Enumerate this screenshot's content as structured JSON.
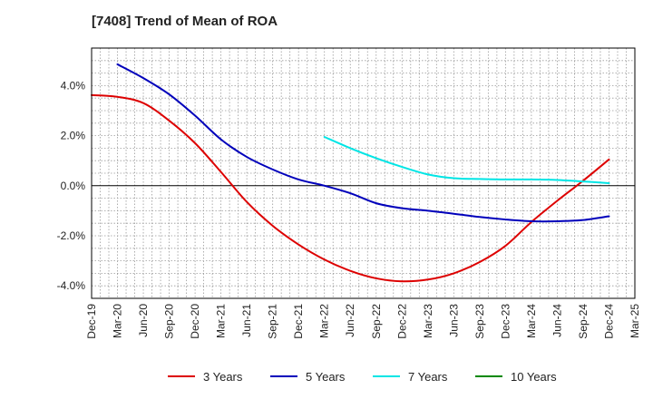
{
  "chart_data": {
    "type": "line",
    "title": "[7408]  Trend of Mean of ROA",
    "xlabel": "",
    "ylabel": "",
    "ylim": [
      -4.5,
      5.5
    ],
    "y_ticks": [
      -4,
      -2,
      0,
      2,
      4
    ],
    "y_tick_labels": [
      "-4.0%",
      "-2.0%",
      "0.0%",
      "2.0%",
      "4.0%"
    ],
    "categories": [
      "Dec-19",
      "Mar-20",
      "Jun-20",
      "Sep-20",
      "Dec-20",
      "Mar-21",
      "Jun-21",
      "Sep-21",
      "Dec-21",
      "Mar-22",
      "Jun-22",
      "Sep-22",
      "Dec-22",
      "Mar-23",
      "Jun-23",
      "Sep-23",
      "Dec-23",
      "Mar-24",
      "Jun-24",
      "Sep-24",
      "Dec-24",
      "Mar-25"
    ],
    "grid": true,
    "zero_line": true,
    "legend_position": "bottom",
    "series": [
      {
        "name": "3 Years",
        "color": "#dd0000",
        "values": [
          3.62,
          3.55,
          3.3,
          2.6,
          1.7,
          0.55,
          -0.65,
          -1.6,
          -2.35,
          -2.95,
          -3.4,
          -3.7,
          -3.82,
          -3.75,
          -3.5,
          -3.05,
          -2.4,
          -1.45,
          -0.6,
          0.2,
          1.05,
          null
        ]
      },
      {
        "name": "5 Years",
        "color": "#0000bb",
        "values": [
          null,
          4.85,
          4.3,
          3.65,
          2.8,
          1.85,
          1.15,
          0.65,
          0.25,
          0.0,
          -0.3,
          -0.7,
          -0.9,
          -1.0,
          -1.12,
          -1.25,
          -1.35,
          -1.42,
          -1.42,
          -1.37,
          -1.22,
          null
        ]
      },
      {
        "name": "7 Years",
        "color": "#00e5e5",
        "values": [
          null,
          null,
          null,
          null,
          null,
          null,
          null,
          null,
          null,
          1.95,
          1.5,
          1.1,
          0.75,
          0.45,
          0.3,
          0.27,
          0.25,
          0.25,
          0.23,
          0.17,
          0.1,
          null
        ]
      },
      {
        "name": "10 Years",
        "color": "#008800",
        "values": [
          null,
          null,
          null,
          null,
          null,
          null,
          null,
          null,
          null,
          null,
          null,
          null,
          null,
          null,
          null,
          null,
          null,
          null,
          null,
          null,
          null,
          null
        ]
      }
    ]
  }
}
